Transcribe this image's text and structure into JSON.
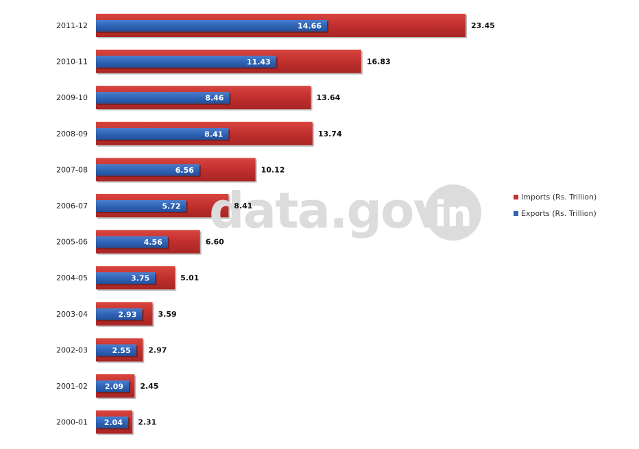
{
  "watermark": {
    "text": "data.gov",
    "badge": "in"
  },
  "chart_data": {
    "type": "bar",
    "orientation": "horizontal",
    "categories": [
      "2011-12",
      "2010-11",
      "2009-10",
      "2008-09",
      "2007-08",
      "2006-07",
      "2005-06",
      "2004-05",
      "2003-04",
      "2002-03",
      "2001-02",
      "2000-01"
    ],
    "series": [
      {
        "name": "Imports (Rs. Trillion)",
        "color": "#c0302e",
        "values": [
          23.45,
          16.83,
          13.64,
          13.74,
          10.12,
          8.41,
          6.6,
          5.01,
          3.59,
          2.97,
          2.45,
          2.31
        ],
        "labels": [
          "23.45",
          "16.83",
          "13.64",
          "13.74",
          "10.12",
          "8.41",
          "6.60",
          "5.01",
          "3.59",
          "2.97",
          "2.45",
          "2.31"
        ]
      },
      {
        "name": "Exports (Rs. Trillion)",
        "color": "#2f64b6",
        "values": [
          14.66,
          11.43,
          8.46,
          8.41,
          6.56,
          5.72,
          4.56,
          3.75,
          2.93,
          2.55,
          2.09,
          2.04
        ],
        "labels": [
          "14.66",
          "11.43",
          "8.46",
          "8.41",
          "6.56",
          "5.72",
          "4.56",
          "3.75",
          "2.93",
          "2.55",
          "2.09",
          "2.04"
        ]
      }
    ],
    "legend": {
      "position": "right",
      "order": [
        "Imports (Rs. Trillion)",
        "Exports (Rs. Trillion)"
      ]
    },
    "grid": false,
    "axes_visible": false,
    "xlim": [
      0,
      23.45
    ]
  }
}
